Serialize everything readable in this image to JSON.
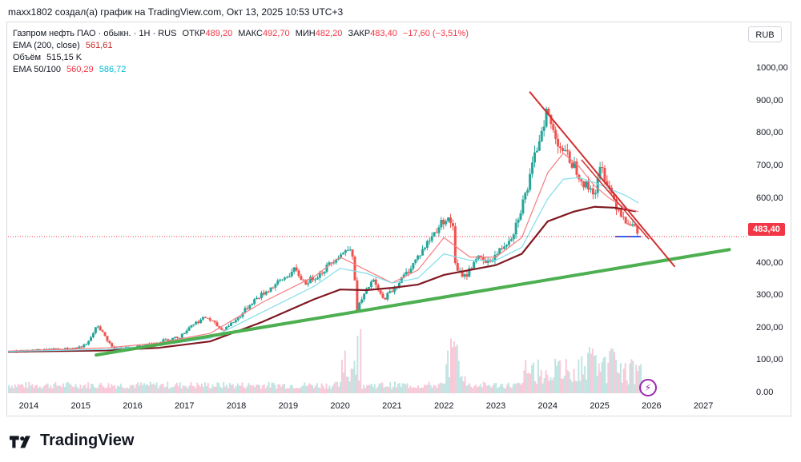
{
  "header": {
    "text": "maxx1802 создал(а) график на TradingView.com, Окт 13, 2025 10:53 UTC+3"
  },
  "legend": {
    "symbol": "Газпром нефть ПАО · обыкн. · 1Н · RUS",
    "open_label": "ОТКР",
    "open": "489,20",
    "high_label": "МАКС",
    "high": "492,70",
    "low_label": "МИН",
    "low": "482,20",
    "close_label": "ЗАКР",
    "close": "483,40",
    "change": "−17,60 (−3,51%)",
    "ema200_label": "EMA (200, close)",
    "ema200_value": "561,61",
    "volume_label": "Объём",
    "volume_value": "515,15 K",
    "ema50_100_label": "EMA 50/100",
    "ema50_value": "560,29",
    "ema100_value": "586,72"
  },
  "currency_button": "RUB",
  "last_price_tag": "483,40",
  "footer": {
    "brand": "TradingView"
  },
  "colors": {
    "up": "#26a69a",
    "down": "#ef5350",
    "ema50": "#f77c80",
    "ema100": "#80deea",
    "ema200": "#801922",
    "green_trend": "#4caf50",
    "red_trend": "#d32f2f",
    "support": "#2962ff"
  },
  "chart_data": {
    "type": "line",
    "title": "Газпром нефть ПАО · обыкн. · 1Н · RUS",
    "xlabel": "",
    "ylabel": "",
    "x_ticks": [
      "2014",
      "2015",
      "2016",
      "2017",
      "2018",
      "2019",
      "2020",
      "2021",
      "2022",
      "2023",
      "2024",
      "2025",
      "2026",
      "2027"
    ],
    "y_ticks": [
      "0.00",
      "100,00",
      "200,00",
      "300,00",
      "400,00",
      "500,00",
      "600,00",
      "700,00",
      "800,00",
      "900,00",
      "1000,00"
    ],
    "ylim": [
      0,
      1050
    ],
    "xlim": [
      2013.6,
      2027.8
    ],
    "grid": false,
    "series": [
      {
        "name": "Газпром нефть ПАО · обыкн.",
        "x": [
          2013.6,
          2014.0,
          2014.5,
          2014.9,
          2015.1,
          2015.3,
          2015.6,
          2016.0,
          2016.5,
          2016.9,
          2017.1,
          2017.4,
          2017.7,
          2018.0,
          2018.3,
          2018.6,
          2018.9,
          2019.1,
          2019.3,
          2019.6,
          2019.9,
          2020.1,
          2020.2,
          2020.3,
          2020.6,
          2020.8,
          2021.0,
          2021.3,
          2021.6,
          2021.9,
          2022.0,
          2022.15,
          2022.2,
          2022.4,
          2022.6,
          2022.8,
          2023.0,
          2023.3,
          2023.6,
          2023.8,
          2023.95,
          2024.1,
          2024.3,
          2024.5,
          2024.7,
          2024.9,
          2025.0,
          2025.15,
          2025.3,
          2025.45,
          2025.6,
          2025.75
        ],
        "values": [
          128,
          132,
          135,
          140,
          150,
          210,
          138,
          142,
          160,
          175,
          210,
          235,
          195,
          230,
          285,
          320,
          355,
          380,
          340,
          370,
          420,
          440,
          460,
          260,
          350,
          290,
          320,
          380,
          450,
          520,
          540,
          520,
          380,
          360,
          420,
          400,
          430,
          490,
          640,
          780,
          870,
          800,
          740,
          700,
          640,
          620,
          700,
          640,
          580,
          540,
          520,
          483
        ]
      },
      {
        "name": "EMA (200, close)",
        "x": [
          2013.6,
          2014.5,
          2015.5,
          2016.5,
          2017.5,
          2018.5,
          2019.5,
          2020.0,
          2020.5,
          2021.0,
          2021.5,
          2022.0,
          2022.5,
          2023.0,
          2023.5,
          2024.0,
          2024.5,
          2024.9,
          2025.3,
          2025.7
        ],
        "values": [
          128,
          130,
          132,
          140,
          160,
          220,
          290,
          320,
          318,
          325,
          335,
          365,
          380,
          395,
          430,
          530,
          560,
          575,
          572,
          561
        ]
      },
      {
        "name": "EMA 50",
        "x": [
          2013.6,
          2015.5,
          2016.5,
          2017.5,
          2018.5,
          2019.5,
          2020.0,
          2020.5,
          2021.0,
          2021.5,
          2022.0,
          2022.5,
          2023.0,
          2023.5,
          2024.0,
          2024.3,
          2024.6,
          2024.9,
          2025.2,
          2025.5,
          2025.75
        ],
        "values": [
          130,
          140,
          155,
          185,
          280,
          360,
          420,
          380,
          340,
          380,
          480,
          420,
          420,
          480,
          680,
          740,
          700,
          640,
          600,
          570,
          560
        ]
      },
      {
        "name": "EMA 100",
        "x": [
          2013.6,
          2015.5,
          2016.5,
          2017.5,
          2018.5,
          2019.5,
          2020.0,
          2020.5,
          2021.0,
          2021.5,
          2022.0,
          2022.5,
          2023.0,
          2023.5,
          2024.0,
          2024.3,
          2024.6,
          2024.9,
          2025.2,
          2025.5,
          2025.75
        ],
        "values": [
          129,
          135,
          148,
          170,
          250,
          330,
          385,
          370,
          340,
          355,
          430,
          410,
          410,
          450,
          600,
          660,
          665,
          650,
          630,
          610,
          587
        ]
      }
    ],
    "volume_max": 260,
    "last_price": 483.4
  }
}
